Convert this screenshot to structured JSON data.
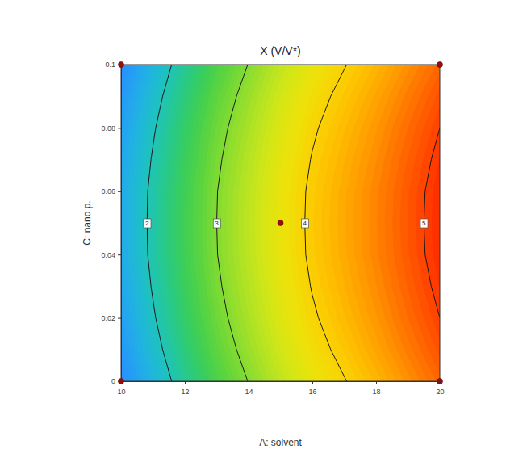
{
  "chart_data": {
    "type": "contour",
    "title": "X (V/V*)",
    "x_label": "A: solvent",
    "y_label": "C: nano p.",
    "x": [
      10,
      11,
      12,
      13,
      14,
      15,
      16,
      17,
      18,
      19,
      20
    ],
    "y": [
      0,
      0.01,
      0.02,
      0.03,
      0.04,
      0.05,
      0.06,
      0.07,
      0.08,
      0.09,
      0.1
    ],
    "z": [
      [
        1.24,
        1.73,
        2.19,
        2.64,
        3.01,
        3.38,
        3.72,
        3.98,
        4.24,
        4.51,
        4.77
      ],
      [
        1.37,
        1.86,
        2.32,
        2.77,
        3.14,
        3.51,
        3.85,
        4.11,
        4.37,
        4.64,
        4.9
      ],
      [
        1.47,
        1.96,
        2.42,
        2.87,
        3.24,
        3.61,
        3.95,
        4.21,
        4.47,
        4.74,
        5.0
      ],
      [
        1.54,
        2.03,
        2.49,
        2.94,
        3.31,
        3.68,
        4.02,
        4.28,
        4.54,
        4.81,
        5.07
      ],
      [
        1.59,
        2.08,
        2.54,
        2.99,
        3.36,
        3.73,
        4.07,
        4.33,
        4.59,
        4.86,
        5.12
      ],
      [
        1.6,
        2.09,
        2.55,
        3.0,
        3.37,
        3.74,
        4.08,
        4.34,
        4.6,
        4.87,
        5.13
      ],
      [
        1.59,
        2.08,
        2.54,
        2.99,
        3.36,
        3.73,
        4.07,
        4.33,
        4.59,
        4.86,
        5.12
      ],
      [
        1.54,
        2.03,
        2.49,
        2.94,
        3.31,
        3.68,
        4.02,
        4.28,
        4.54,
        4.81,
        5.07
      ],
      [
        1.47,
        1.96,
        2.42,
        2.87,
        3.24,
        3.61,
        3.95,
        4.21,
        4.47,
        4.74,
        5.0
      ],
      [
        1.37,
        1.86,
        2.32,
        2.77,
        3.14,
        3.51,
        3.85,
        4.11,
        4.37,
        4.64,
        4.9
      ],
      [
        1.24,
        1.73,
        2.19,
        2.64,
        3.01,
        3.38,
        3.72,
        3.98,
        4.24,
        4.51,
        4.77
      ]
    ],
    "contour_levels": [
      2,
      3,
      4,
      5
    ],
    "design_points": {
      "x": [
        10,
        20,
        15,
        10,
        20
      ],
      "y": [
        0.1,
        0.1,
        0.05,
        0,
        0
      ]
    },
    "xlim": [
      10,
      20
    ],
    "ylim": [
      0,
      0.1
    ],
    "xticks": [
      10,
      12,
      14,
      16,
      18,
      20
    ],
    "yticks": [
      0,
      0.02,
      0.04,
      0.06,
      0.08,
      0.1
    ]
  }
}
